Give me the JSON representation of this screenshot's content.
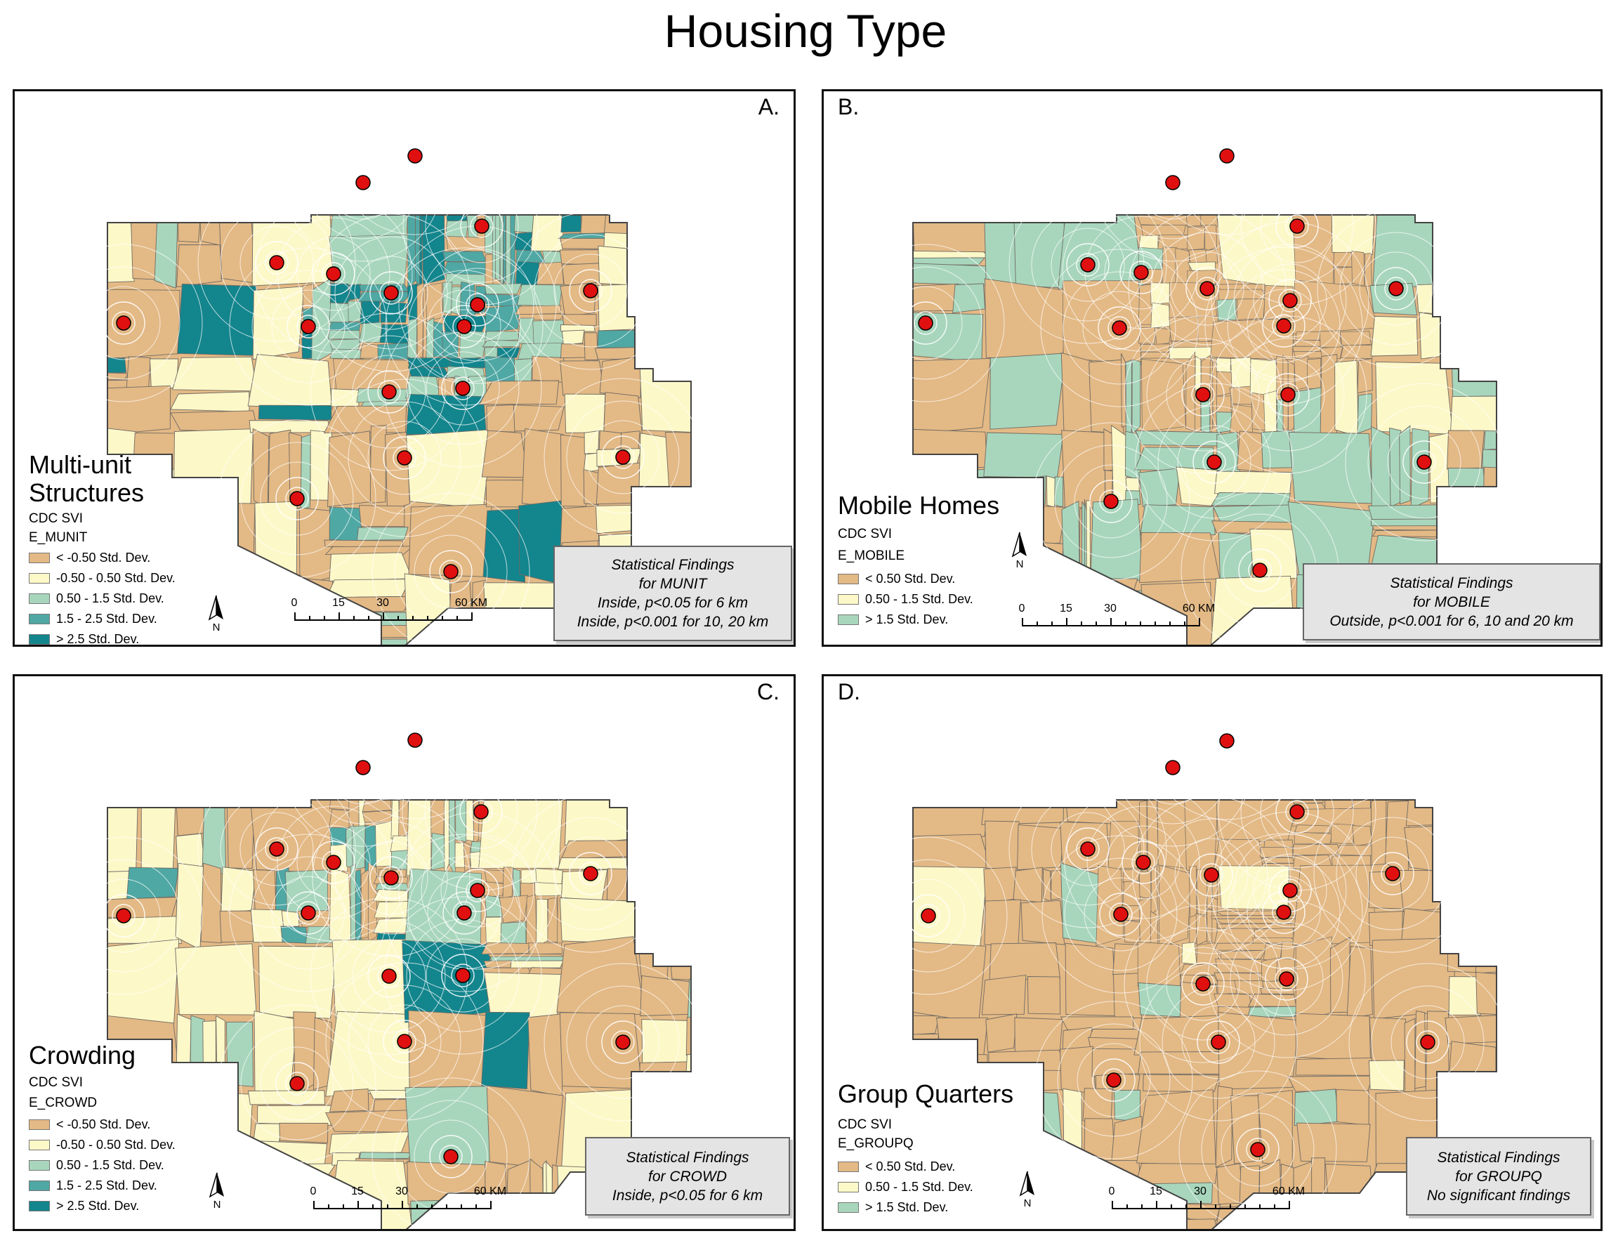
{
  "title": "Housing Type",
  "colors": {
    "lt_neg050": "#e3b985",
    "neg050_050": "#fdf8c8",
    "c050_15": "#a8d6bc",
    "c15_25": "#4fa8a4",
    "gt25": "#13858d",
    "point": "#e01010"
  },
  "scale": {
    "labels": [
      "0",
      "15",
      "30",
      "60 KM"
    ]
  },
  "north_label": "N",
  "panels": [
    {
      "id": "A",
      "letter": "A.",
      "title": "Multi-unit\nStructures",
      "source": "CDC SVI",
      "field": "E_MUNIT",
      "legend": [
        {
          "label": "< -0.50 Std. Dev.",
          "color": "#e3b985"
        },
        {
          "label": "-0.50 - 0.50 Std. Dev.",
          "color": "#fdf8c8"
        },
        {
          "label": "0.50 - 1.5 Std. Dev.",
          "color": "#a8d6bc"
        },
        {
          "label": "1.5 - 2.5 Std. Dev.",
          "color": "#4fa8a4"
        },
        {
          "label": "> 2.5 Std. Dev.",
          "color": "#13858d"
        }
      ],
      "findings": [
        "Statistical Findings",
        "for MUNIT",
        "Inside, p<0.05  for 6  km",
        "Inside, p<0.001 for 10, 20 km"
      ]
    },
    {
      "id": "B",
      "letter": "B.",
      "title": "Mobile Homes",
      "source": "CDC SVI",
      "field": "E_MOBILE",
      "legend": [
        {
          "label": "< 0.50 Std. Dev.",
          "color": "#e3b985"
        },
        {
          "label": "0.50 - 1.5 Std. Dev.",
          "color": "#fdf8c8"
        },
        {
          "label": "> 1.5 Std. Dev.",
          "color": "#a8d6bc"
        }
      ],
      "findings": [
        "Statistical Findings",
        "for MOBILE",
        "Outside, p<0.001 for 6, 10 and 20 km"
      ]
    },
    {
      "id": "C",
      "letter": "C.",
      "title": "Crowding",
      "source": "CDC SVI",
      "field": "E_CROWD",
      "legend": [
        {
          "label": "< -0.50 Std. Dev.",
          "color": "#e3b985"
        },
        {
          "label": "-0.50 - 0.50 Std. Dev.",
          "color": "#fdf8c8"
        },
        {
          "label": "0.50 - 1.5 Std. Dev.",
          "color": "#a8d6bc"
        },
        {
          "label": "1.5 - 2.5 Std. Dev.",
          "color": "#4fa8a4"
        },
        {
          "label": "> 2.5 Std. Dev.",
          "color": "#13858d"
        }
      ],
      "findings": [
        "Statistical Findings",
        "for CROWD",
        "Inside, p<0.05 for 6 km"
      ]
    },
    {
      "id": "D",
      "letter": "D.",
      "title": "Group Quarters",
      "source": "CDC SVI",
      "field": "E_GROUPQ",
      "legend": [
        {
          "label": "< 0.50 Std. Dev.",
          "color": "#e3b985"
        },
        {
          "label": "0.50 - 1.5 Std. Dev.",
          "color": "#fdf8c8"
        },
        {
          "label": "> 1.5 Std. Dev.",
          "color": "#a8d6bc"
        }
      ],
      "findings": [
        "Statistical Findings",
        "for GROUPQ",
        "No significant findings"
      ]
    }
  ]
}
